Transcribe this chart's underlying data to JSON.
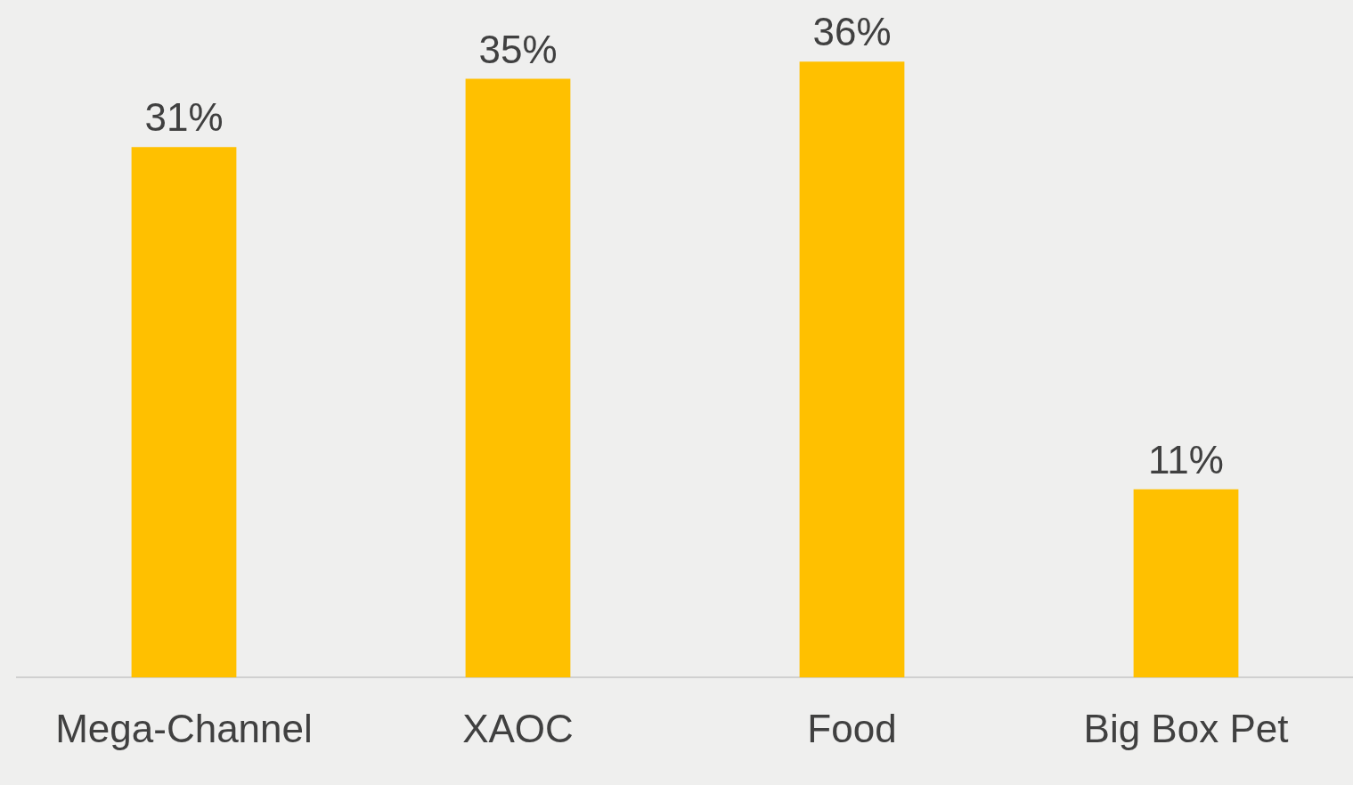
{
  "chart_data": {
    "type": "bar",
    "categories": [
      "Mega-Channel",
      "XAOC",
      "Food",
      "Big Box Pet"
    ],
    "values": [
      31,
      35,
      36,
      11
    ],
    "value_labels": [
      "31%",
      "35%",
      "36%",
      "11%"
    ],
    "color": "#ffc000"
  }
}
